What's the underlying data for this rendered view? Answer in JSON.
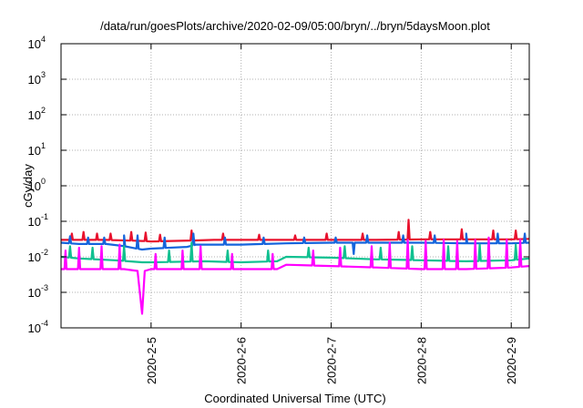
{
  "chart_data": {
    "type": "line",
    "title": "/data/run/goesPlots/archive/2020-02-09/05:00/bryn/../bryn/5daysMoon.plot",
    "xlabel": "Coordinated Universal Time (UTC)",
    "ylabel": "cGy/day",
    "y_scale": "log",
    "ylim": [
      0.0001,
      10000
    ],
    "xlim": [
      4.0,
      9.2
    ],
    "y_ticks": [
      {
        "value": 0.0001,
        "mant": "10",
        "exp": "-4"
      },
      {
        "value": 0.001,
        "mant": "10",
        "exp": "-3"
      },
      {
        "value": 0.01,
        "mant": "10",
        "exp": "-2"
      },
      {
        "value": 0.1,
        "mant": "10",
        "exp": "-1"
      },
      {
        "value": 1,
        "mant": "10",
        "exp": "0"
      },
      {
        "value": 10,
        "mant": "10",
        "exp": "1"
      },
      {
        "value": 100,
        "mant": "10",
        "exp": "2"
      },
      {
        "value": 1000,
        "mant": "10",
        "exp": "3"
      },
      {
        "value": 10000,
        "mant": "10",
        "exp": "4"
      }
    ],
    "x_ticks": [
      {
        "value": 5,
        "label": "2020-2-5"
      },
      {
        "value": 6,
        "label": "2020-2-6"
      },
      {
        "value": 7,
        "label": "2020-2-7"
      },
      {
        "value": 8,
        "label": "2020-2-8"
      },
      {
        "value": 9,
        "label": "2020-2-9"
      }
    ],
    "grid": true,
    "series": [
      {
        "color": "#e8112d",
        "base": [
          [
            4.0,
            0.03
          ],
          [
            4.5,
            0.03
          ],
          [
            4.9,
            0.028
          ],
          [
            5.0,
            0.027
          ],
          [
            5.5,
            0.029
          ],
          [
            5.7,
            0.03
          ],
          [
            6.0,
            0.03
          ],
          [
            6.5,
            0.03
          ],
          [
            7.0,
            0.03
          ],
          [
            7.5,
            0.03
          ],
          [
            8.0,
            0.031
          ],
          [
            8.5,
            0.031
          ],
          [
            9.0,
            0.031
          ],
          [
            9.2,
            0.032
          ]
        ],
        "spikes": [
          [
            4.12,
            0.045
          ],
          [
            4.25,
            0.05
          ],
          [
            4.4,
            0.045
          ],
          [
            4.55,
            0.045
          ],
          [
            4.78,
            0.05
          ],
          [
            4.94,
            0.048
          ],
          [
            5.1,
            0.042
          ],
          [
            5.45,
            0.055
          ],
          [
            5.8,
            0.045
          ],
          [
            6.2,
            0.042
          ],
          [
            6.6,
            0.04
          ],
          [
            6.95,
            0.045
          ],
          [
            7.35,
            0.045
          ],
          [
            7.75,
            0.05
          ],
          [
            7.86,
            0.11
          ],
          [
            8.1,
            0.05
          ],
          [
            8.45,
            0.06
          ],
          [
            8.8,
            0.055
          ],
          [
            9.05,
            0.055
          ]
        ]
      },
      {
        "color": "#1464dc",
        "base": [
          [
            4.0,
            0.025
          ],
          [
            4.2,
            0.023
          ],
          [
            4.5,
            0.023
          ],
          [
            4.7,
            0.02
          ],
          [
            4.9,
            0.016
          ],
          [
            5.0,
            0.017
          ],
          [
            5.4,
            0.019
          ],
          [
            5.5,
            0.022
          ],
          [
            6.0,
            0.022
          ],
          [
            6.5,
            0.024
          ],
          [
            7.0,
            0.025
          ],
          [
            7.5,
            0.025
          ],
          [
            8.0,
            0.025
          ],
          [
            8.5,
            0.024
          ],
          [
            9.0,
            0.024
          ],
          [
            9.2,
            0.025
          ]
        ],
        "spikes": [
          [
            4.1,
            0.038
          ],
          [
            4.3,
            0.035
          ],
          [
            4.48,
            0.035
          ],
          [
            4.7,
            0.04
          ],
          [
            4.85,
            0.04
          ],
          [
            5.15,
            0.035
          ],
          [
            5.47,
            0.045
          ],
          [
            5.82,
            0.035
          ],
          [
            6.25,
            0.035
          ],
          [
            6.7,
            0.035
          ],
          [
            7.05,
            0.035
          ],
          [
            7.25,
            0.012
          ],
          [
            7.4,
            0.04
          ],
          [
            7.8,
            0.04
          ],
          [
            8.15,
            0.04
          ],
          [
            8.5,
            0.045
          ],
          [
            8.85,
            0.045
          ],
          [
            9.15,
            0.045
          ]
        ]
      },
      {
        "color": "#10c090",
        "base": [
          [
            4.0,
            0.01
          ],
          [
            4.2,
            0.009
          ],
          [
            4.6,
            0.008
          ],
          [
            4.9,
            0.007
          ],
          [
            5.0,
            0.007
          ],
          [
            5.6,
            0.0075
          ],
          [
            6.0,
            0.007
          ],
          [
            6.4,
            0.0075
          ],
          [
            6.5,
            0.01
          ],
          [
            7.0,
            0.0095
          ],
          [
            7.5,
            0.0085
          ],
          [
            8.0,
            0.008
          ],
          [
            8.5,
            0.0075
          ],
          [
            9.0,
            0.008
          ],
          [
            9.2,
            0.009
          ]
        ],
        "spikes": [
          [
            4.1,
            0.02
          ],
          [
            4.35,
            0.018
          ],
          [
            4.7,
            0.02
          ],
          [
            5.2,
            0.015
          ],
          [
            5.45,
            0.025
          ],
          [
            5.85,
            0.015
          ],
          [
            6.3,
            0.015
          ],
          [
            6.75,
            0.018
          ],
          [
            7.15,
            0.02
          ],
          [
            7.55,
            0.018
          ],
          [
            7.9,
            0.02
          ],
          [
            8.3,
            0.02
          ],
          [
            8.65,
            0.022
          ],
          [
            9.05,
            0.022
          ]
        ]
      },
      {
        "color": "#ff00ff",
        "base": [
          [
            4.0,
            0.0045
          ],
          [
            4.3,
            0.0045
          ],
          [
            4.7,
            0.0045
          ],
          [
            4.85,
            0.004
          ],
          [
            4.9,
            0.00025
          ],
          [
            4.93,
            0.004
          ],
          [
            5.0,
            0.0045
          ],
          [
            5.5,
            0.0045
          ],
          [
            6.0,
            0.0045
          ],
          [
            6.4,
            0.0045
          ],
          [
            6.5,
            0.006
          ],
          [
            7.0,
            0.0055
          ],
          [
            7.5,
            0.005
          ],
          [
            8.0,
            0.0045
          ],
          [
            8.5,
            0.0045
          ],
          [
            9.0,
            0.005
          ],
          [
            9.2,
            0.0055
          ]
        ],
        "spikes": [
          [
            4.05,
            0.015
          ],
          [
            4.2,
            0.018
          ],
          [
            4.45,
            0.02
          ],
          [
            4.65,
            0.022
          ],
          [
            5.05,
            0.012
          ],
          [
            5.35,
            0.015
          ],
          [
            5.55,
            0.02
          ],
          [
            5.9,
            0.012
          ],
          [
            6.35,
            0.012
          ],
          [
            6.8,
            0.015
          ],
          [
            7.1,
            0.018
          ],
          [
            7.45,
            0.02
          ],
          [
            7.65,
            0.025
          ],
          [
            7.85,
            0.03
          ],
          [
            8.05,
            0.028
          ],
          [
            8.25,
            0.03
          ],
          [
            8.4,
            0.028
          ],
          [
            8.6,
            0.03
          ],
          [
            8.75,
            0.035
          ],
          [
            8.95,
            0.03
          ],
          [
            9.1,
            0.03
          ]
        ]
      }
    ]
  }
}
